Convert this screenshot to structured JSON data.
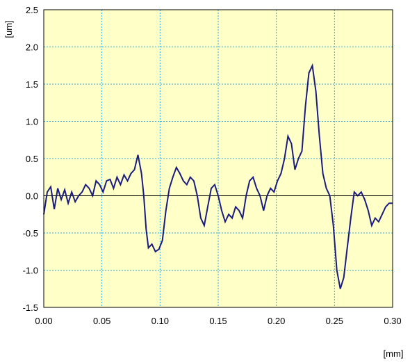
{
  "chart_data": {
    "type": "line",
    "title": "",
    "xlabel": "[mm]",
    "ylabel": "[um]",
    "xlim": [
      0.0,
      0.3
    ],
    "ylim": [
      -1.5,
      2.5
    ],
    "x_ticks": [
      "0.00",
      "0.05",
      "0.10",
      "0.15",
      "0.20",
      "0.25",
      "0.30"
    ],
    "y_ticks": [
      "2.5",
      "2.0",
      "1.5",
      "1.0",
      "0.5",
      "0.0",
      "-0.5",
      "-1.0",
      "-1.5"
    ],
    "grid": true,
    "legend": "none",
    "colors": {
      "plot_bg": "#ffffc8",
      "grid": "#33aadd",
      "line": "#1a1a80",
      "zero_line": "#000000"
    },
    "series": [
      {
        "x": [
          0.0,
          0.003,
          0.006,
          0.009,
          0.012,
          0.015,
          0.018,
          0.021,
          0.024,
          0.027,
          0.03,
          0.033,
          0.036,
          0.039,
          0.042,
          0.045,
          0.048,
          0.051,
          0.054,
          0.057,
          0.06,
          0.063,
          0.066,
          0.069,
          0.072,
          0.075,
          0.078,
          0.081,
          0.084,
          0.086,
          0.088,
          0.09,
          0.093,
          0.096,
          0.099,
          0.102,
          0.105,
          0.108,
          0.111,
          0.114,
          0.117,
          0.12,
          0.123,
          0.126,
          0.129,
          0.132,
          0.135,
          0.138,
          0.141,
          0.144,
          0.147,
          0.15,
          0.153,
          0.156,
          0.159,
          0.162,
          0.165,
          0.168,
          0.171,
          0.174,
          0.177,
          0.18,
          0.183,
          0.186,
          0.189,
          0.192,
          0.195,
          0.198,
          0.201,
          0.204,
          0.207,
          0.21,
          0.213,
          0.216,
          0.219,
          0.222,
          0.225,
          0.228,
          0.231,
          0.234,
          0.237,
          0.24,
          0.243,
          0.246,
          0.249,
          0.252,
          0.255,
          0.258,
          0.261,
          0.264,
          0.267,
          0.27,
          0.273,
          0.276,
          0.279,
          0.282,
          0.285,
          0.288,
          0.291,
          0.294,
          0.297,
          0.3
        ],
        "y": [
          -0.25,
          0.05,
          0.12,
          -0.18,
          0.1,
          -0.05,
          0.08,
          -0.1,
          0.05,
          -0.08,
          0.0,
          0.05,
          0.15,
          0.1,
          0.0,
          0.2,
          0.15,
          0.05,
          0.2,
          0.22,
          0.1,
          0.25,
          0.15,
          0.28,
          0.2,
          0.3,
          0.35,
          0.55,
          0.3,
          0.0,
          -0.45,
          -0.7,
          -0.65,
          -0.75,
          -0.72,
          -0.6,
          -0.2,
          0.1,
          0.25,
          0.38,
          0.3,
          0.2,
          0.15,
          0.25,
          0.2,
          0.0,
          -0.3,
          -0.4,
          -0.15,
          0.1,
          0.15,
          0.0,
          -0.2,
          -0.35,
          -0.25,
          -0.3,
          -0.15,
          -0.2,
          -0.3,
          0.0,
          0.2,
          0.25,
          0.1,
          0.0,
          -0.2,
          0.0,
          0.1,
          0.05,
          0.2,
          0.3,
          0.5,
          0.8,
          0.7,
          0.35,
          0.5,
          0.6,
          1.2,
          1.65,
          1.75,
          1.4,
          0.8,
          0.3,
          0.1,
          0.0,
          -0.4,
          -1.0,
          -1.25,
          -1.1,
          -0.7,
          -0.3,
          0.05,
          0.0,
          0.05,
          -0.05,
          -0.2,
          -0.4,
          -0.3,
          -0.35,
          -0.25,
          -0.15,
          -0.1,
          -0.1
        ]
      }
    ]
  }
}
